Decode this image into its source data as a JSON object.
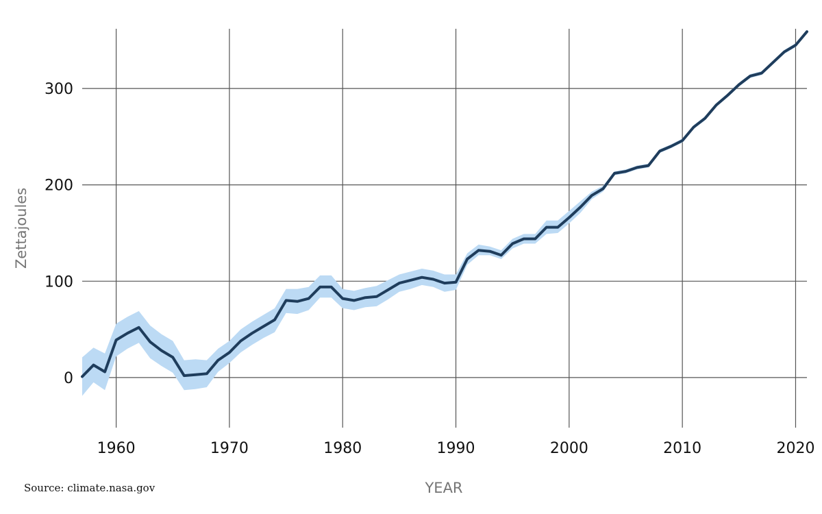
{
  "chart_data": {
    "type": "line",
    "title": "",
    "xlabel": "YEAR",
    "ylabel": "Zettajoules",
    "source": "Source: climate.nasa.gov",
    "xlim": [
      1957,
      2021
    ],
    "ylim": [
      -52,
      362
    ],
    "x_ticks": [
      1960,
      1970,
      1980,
      1990,
      2000,
      2010,
      2020
    ],
    "y_ticks": [
      0,
      100,
      200,
      300
    ],
    "grid": true,
    "colors": {
      "line": "#1f3d5c",
      "band": "#bcdaf4",
      "grid": "#555555"
    },
    "series": [
      {
        "x": [
          1957,
          1958,
          1959,
          1960,
          1961,
          1962,
          1963,
          1964,
          1965,
          1966,
          1967,
          1968,
          1969,
          1970,
          1971,
          1972,
          1973,
          1974,
          1975,
          1976,
          1977,
          1978,
          1979,
          1980,
          1981,
          1982,
          1983,
          1984,
          1985,
          1986,
          1987,
          1988,
          1989,
          1990,
          1991,
          1992,
          1993,
          1994,
          1995,
          1996,
          1997,
          1998,
          1999,
          2000,
          2001,
          2002,
          2003,
          2004,
          2005,
          2006,
          2007,
          2008,
          2009,
          2010,
          2011,
          2012,
          2013,
          2014,
          2015,
          2016,
          2017,
          2018,
          2019,
          2020,
          2021
        ],
        "values": [
          1,
          13,
          6,
          39,
          46,
          52,
          37,
          28,
          21,
          2,
          3,
          4,
          18,
          26,
          38,
          46,
          53,
          60,
          80,
          79,
          82,
          94,
          94,
          82,
          80,
          83,
          84,
          91,
          98,
          101,
          104,
          102,
          98,
          99,
          123,
          132,
          131,
          127,
          139,
          144,
          144,
          156,
          156,
          166,
          177,
          189,
          196,
          212,
          214,
          218,
          220,
          235,
          240,
          246,
          260,
          269,
          283,
          293,
          304,
          313,
          316,
          327,
          338,
          345,
          359
        ],
        "lower": [
          -19,
          -5,
          -13,
          22,
          30,
          36,
          20,
          12,
          5,
          -13,
          -12,
          -10,
          6,
          15,
          26,
          34,
          41,
          47,
          67,
          66,
          70,
          83,
          83,
          72,
          70,
          73,
          74,
          81,
          89,
          92,
          96,
          94,
          89,
          91,
          117,
          127,
          127,
          123,
          134,
          139,
          139,
          149,
          150,
          160,
          171,
          185,
          193,
          210,
          212,
          216,
          218,
          233,
          238,
          244,
          258,
          267,
          281,
          291,
          302,
          311,
          314,
          325,
          336,
          343,
          357
        ],
        "upper": [
          21,
          31,
          25,
          56,
          63,
          69,
          54,
          45,
          38,
          18,
          19,
          18,
          30,
          38,
          50,
          58,
          65,
          72,
          92,
          92,
          94,
          106,
          106,
          92,
          90,
          93,
          95,
          101,
          107,
          110,
          113,
          111,
          107,
          107,
          129,
          138,
          136,
          132,
          144,
          149,
          149,
          163,
          163,
          173,
          183,
          193,
          199,
          214,
          216,
          220,
          222,
          237,
          242,
          248,
          262,
          271,
          285,
          295,
          306,
          315,
          318,
          329,
          340,
          347,
          361
        ]
      }
    ]
  }
}
